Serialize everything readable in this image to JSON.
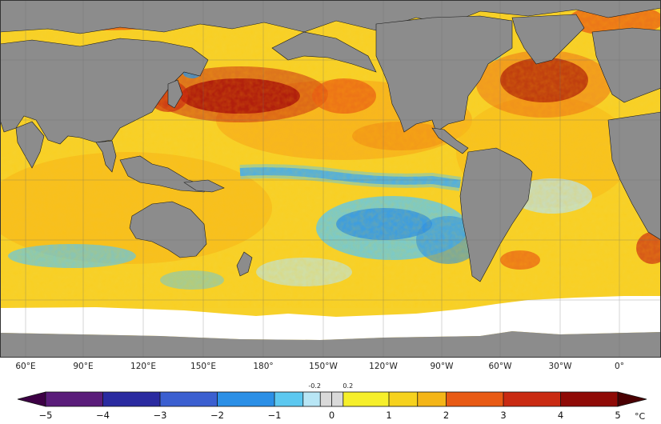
{
  "map": {
    "colors": {
      "land": "#8c8c8c",
      "sea_ice": "#ffffff",
      "coast": "#1a1a1a"
    },
    "longitude_labels": [
      "60°E",
      "90°E",
      "120°E",
      "150°E",
      "180°",
      "150°W",
      "120°W",
      "90°W",
      "60°W",
      "30°W",
      "0°"
    ]
  },
  "colorbar": {
    "unit": "°C",
    "ticks": [
      "−5",
      "−4",
      "−3",
      "−2",
      "−1",
      "0",
      "1",
      "2",
      "3",
      "4",
      "5"
    ],
    "near_zero_labels": [
      "-0.2",
      "0.2"
    ],
    "colors": [
      "#3d0045",
      "#5a1c7a",
      "#2a2aa0",
      "#3b5fd0",
      "#2b8fe6",
      "#5cc8f0",
      "#b8e6f5",
      "#d9d9d9",
      "#d9d9d9",
      "#f6ef2a",
      "#f6d21e",
      "#f4b517",
      "#f08b16",
      "#e85a14",
      "#c92a12",
      "#8f0a06",
      "#4a0002"
    ]
  }
}
